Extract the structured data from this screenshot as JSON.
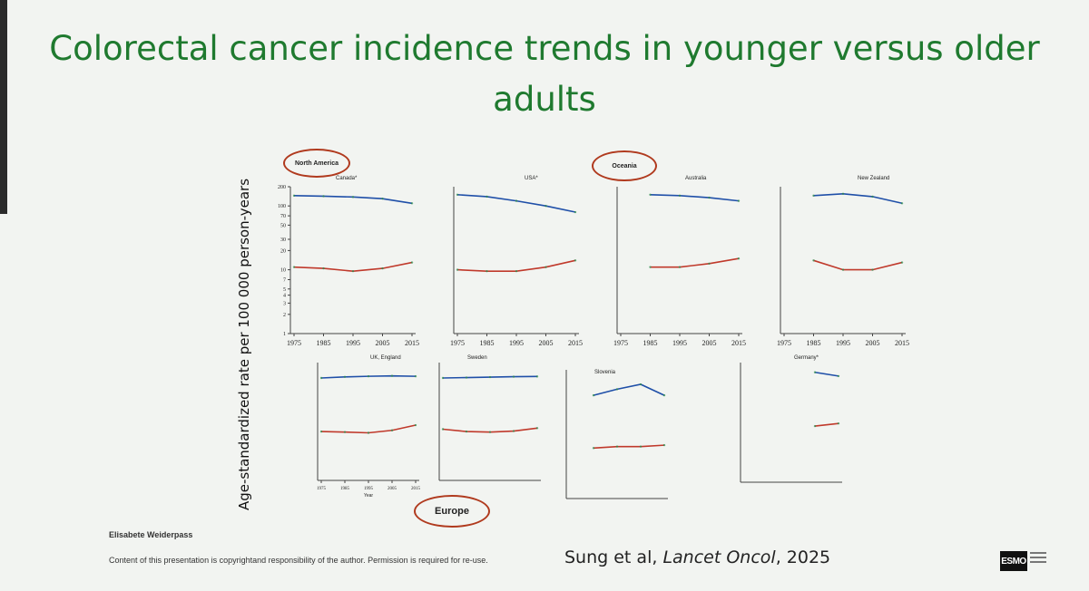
{
  "slide": {
    "title": "Colorectal cancer incidence trends in younger versus older adults",
    "ylabel": "Age-standardized rate per 100 000 person-years",
    "regions": {
      "north_america": "North America",
      "oceania": "Oceania",
      "europe": "Europe"
    },
    "author": "Elisabete Weiderpass",
    "copyright": "Content of this presentation is copyrightand responsibility of the author. Permission is required for re-use.",
    "citation_authors": "Sung et al, ",
    "citation_journal": "Lancet Oncol",
    "citation_year": ", 2025",
    "logo": "ESMO"
  },
  "colors": {
    "title": "#1f7a2f",
    "older": "#1f4fa8",
    "younger": "#c0392b",
    "region_circle": "#b03a1e"
  },
  "chart_data": [
    {
      "type": "line",
      "title": "Canada*",
      "x": [
        1975,
        1985,
        1995,
        2005,
        2015
      ],
      "x_tick_labels": [
        "1975",
        "1985",
        "1995",
        "2005",
        "2015"
      ],
      "y_tick_labels": [
        "1",
        "2",
        "3",
        "4",
        "5",
        "7",
        "10",
        "20",
        "30",
        "50",
        "70",
        "100",
        "200"
      ],
      "yscale": "log",
      "ylim": [
        1,
        200
      ],
      "series": [
        {
          "values": [
            145,
            142,
            138,
            130,
            110
          ]
        },
        {
          "values": [
            11,
            10.5,
            9.5,
            10.5,
            13
          ]
        }
      ]
    },
    {
      "type": "line",
      "title": "USA*",
      "x": [
        1975,
        1985,
        1995,
        2005,
        2015
      ],
      "x_tick_labels": [
        "1975",
        "1985",
        "1995",
        "2005",
        "2015"
      ],
      "yscale": "log",
      "ylim": [
        1,
        200
      ],
      "series": [
        {
          "values": [
            150,
            140,
            120,
            100,
            80
          ]
        },
        {
          "values": [
            10,
            9.5,
            9.5,
            11,
            14
          ]
        }
      ]
    },
    {
      "type": "line",
      "title": "Australia",
      "x": [
        1975,
        1985,
        1995,
        2005,
        2015
      ],
      "x_tick_labels": [
        "1975",
        "1985",
        "1995",
        "2005",
        "2015"
      ],
      "yscale": "log",
      "ylim": [
        1,
        200
      ],
      "series": [
        {
          "values": [
            null,
            150,
            145,
            135,
            120
          ]
        },
        {
          "values": [
            null,
            11,
            11,
            12.5,
            15
          ]
        }
      ]
    },
    {
      "type": "line",
      "title": "New Zealand",
      "x": [
        1975,
        1985,
        1995,
        2005,
        2015
      ],
      "x_tick_labels": [
        "1975",
        "1985",
        "1995",
        "2005",
        "2015"
      ],
      "yscale": "log",
      "ylim": [
        1,
        200
      ],
      "series": [
        {
          "values": [
            null,
            145,
            155,
            140,
            110
          ]
        },
        {
          "values": [
            null,
            14,
            10,
            10,
            13
          ]
        }
      ]
    },
    {
      "type": "line",
      "title": "UK, England",
      "x": [
        1975,
        1985,
        1995,
        2005,
        2015
      ],
      "x_tick_labels": [
        "1975",
        "1985",
        "1995",
        "2005",
        "2015"
      ],
      "xlabel": "Year",
      "yscale": "log",
      "ylim": [
        1,
        200
      ],
      "series": [
        {
          "values": [
            100,
            105,
            108,
            110,
            108
          ]
        },
        {
          "values": [
            9,
            8.8,
            8.5,
            9.5,
            12
          ]
        }
      ]
    },
    {
      "type": "line",
      "title": "Sweden",
      "yscale": "log",
      "ylim": [
        1,
        200
      ],
      "series": [
        {
          "values": [
            100,
            102,
            104,
            106,
            107
          ]
        },
        {
          "values": [
            10,
            9,
            8.8,
            9.2,
            10.5
          ]
        }
      ]
    },
    {
      "type": "line",
      "title": "Slovenia",
      "yscale": "log",
      "ylim": [
        1,
        200
      ],
      "series": [
        {
          "values": [
            null,
            70,
            90,
            110,
            70
          ]
        },
        {
          "values": [
            null,
            8,
            8.5,
            8.5,
            9
          ]
        }
      ]
    },
    {
      "type": "line",
      "title": "Germany*",
      "yscale": "log",
      "ylim": [
        1,
        200
      ],
      "series": [
        {
          "values": [
            null,
            null,
            null,
            130,
            110
          ]
        },
        {
          "values": [
            null,
            null,
            null,
            12,
            13.5
          ]
        }
      ]
    }
  ]
}
